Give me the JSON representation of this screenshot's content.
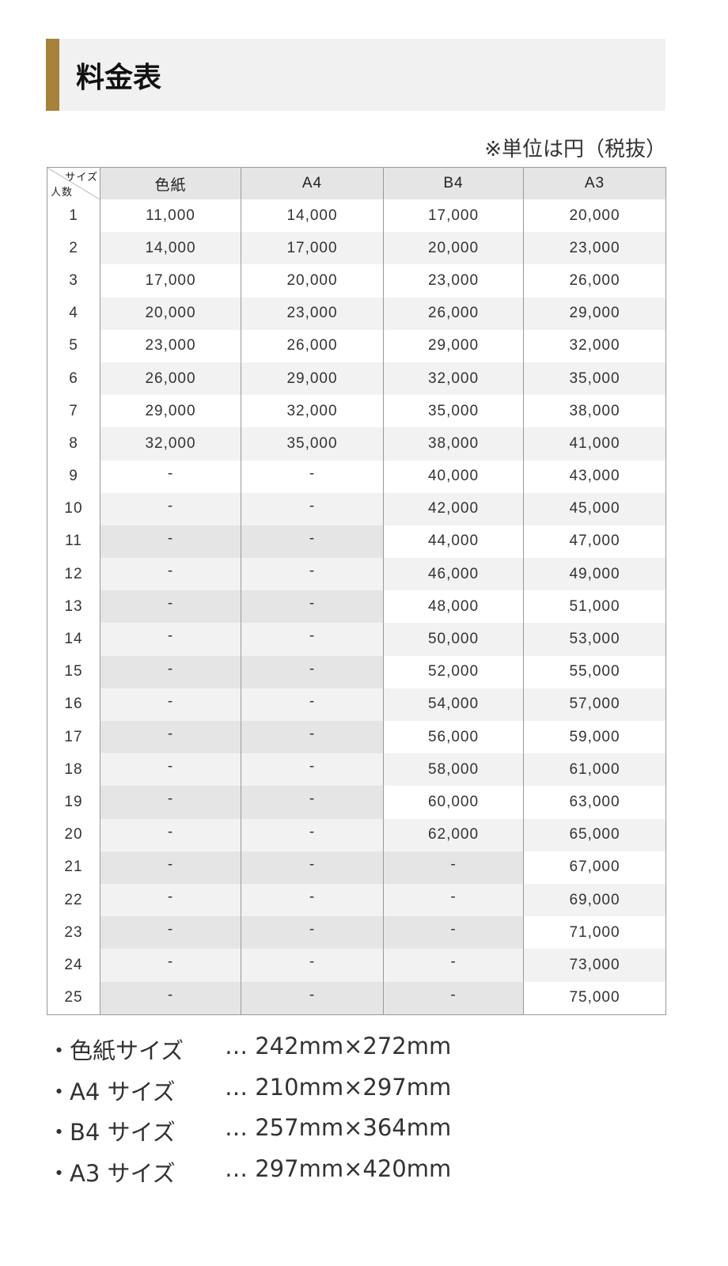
{
  "title": "料金表",
  "unit_note": "※単位は円（税抜）",
  "table": {
    "corner_top": "サイズ",
    "corner_bottom": "人数",
    "columns": [
      "色紙",
      "A4",
      "B4",
      "A3"
    ],
    "rows": [
      [
        "1",
        "11,000",
        "14,000",
        "17,000",
        "20,000"
      ],
      [
        "2",
        "14,000",
        "17,000",
        "20,000",
        "23,000"
      ],
      [
        "3",
        "17,000",
        "20,000",
        "23,000",
        "26,000"
      ],
      [
        "4",
        "20,000",
        "23,000",
        "26,000",
        "29,000"
      ],
      [
        "5",
        "23,000",
        "26,000",
        "29,000",
        "32,000"
      ],
      [
        "6",
        "26,000",
        "29,000",
        "32,000",
        "35,000"
      ],
      [
        "7",
        "29,000",
        "32,000",
        "35,000",
        "38,000"
      ],
      [
        "8",
        "32,000",
        "35,000",
        "38,000",
        "41,000"
      ],
      [
        "9",
        "-",
        "-",
        "40,000",
        "43,000"
      ],
      [
        "10",
        "-",
        "-",
        "42,000",
        "45,000"
      ],
      [
        "11",
        "-",
        "-",
        "44,000",
        "47,000"
      ],
      [
        "12",
        "-",
        "-",
        "46,000",
        "49,000"
      ],
      [
        "13",
        "-",
        "-",
        "48,000",
        "51,000"
      ],
      [
        "14",
        "-",
        "-",
        "50,000",
        "53,000"
      ],
      [
        "15",
        "-",
        "-",
        "52,000",
        "55,000"
      ],
      [
        "16",
        "-",
        "-",
        "54,000",
        "57,000"
      ],
      [
        "17",
        "-",
        "-",
        "56,000",
        "59,000"
      ],
      [
        "18",
        "-",
        "-",
        "58,000",
        "61,000"
      ],
      [
        "19",
        "-",
        "-",
        "60,000",
        "63,000"
      ],
      [
        "20",
        "-",
        "-",
        "62,000",
        "65,000"
      ],
      [
        "21",
        "-",
        "-",
        "-",
        "67,000"
      ],
      [
        "22",
        "-",
        "-",
        "-",
        "69,000"
      ],
      [
        "23",
        "-",
        "-",
        "-",
        "71,000"
      ],
      [
        "24",
        "-",
        "-",
        "-",
        "73,000"
      ],
      [
        "25",
        "-",
        "-",
        "-",
        "75,000"
      ]
    ]
  },
  "notes": [
    {
      "bullet": "・",
      "label": "色紙サイズ",
      "value": "… 242mm×272mm"
    },
    {
      "bullet": "・",
      "label": "A4 サイズ",
      "value": "… 210mm×297mm"
    },
    {
      "bullet": "・",
      "label": "B4 サイズ",
      "value": "… 257mm×364mm"
    },
    {
      "bullet": "・",
      "label": "A3 サイズ",
      "value": "… 297mm×420mm"
    }
  ],
  "colors": {
    "accent": "#a5813a",
    "header_bg": "#e5e5e5",
    "stripe": "#f2f2f2"
  }
}
